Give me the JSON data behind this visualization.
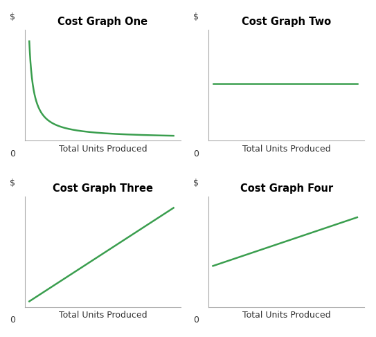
{
  "titles": [
    "Cost Graph One",
    "Cost Graph Two",
    "Cost Graph Three",
    "Cost Graph Four"
  ],
  "xlabel": "Total Units Produced",
  "ylabel": "$",
  "line_color": "#3a9e4e",
  "line_width": 1.8,
  "background_color": "#ffffff",
  "axes_bg_color": "#ffffff",
  "spine_color": "#aaaaaa",
  "title_fontsize": 10.5,
  "label_fontsize": 9,
  "zero_fontsize": 9,
  "title_fontweight": "bold"
}
